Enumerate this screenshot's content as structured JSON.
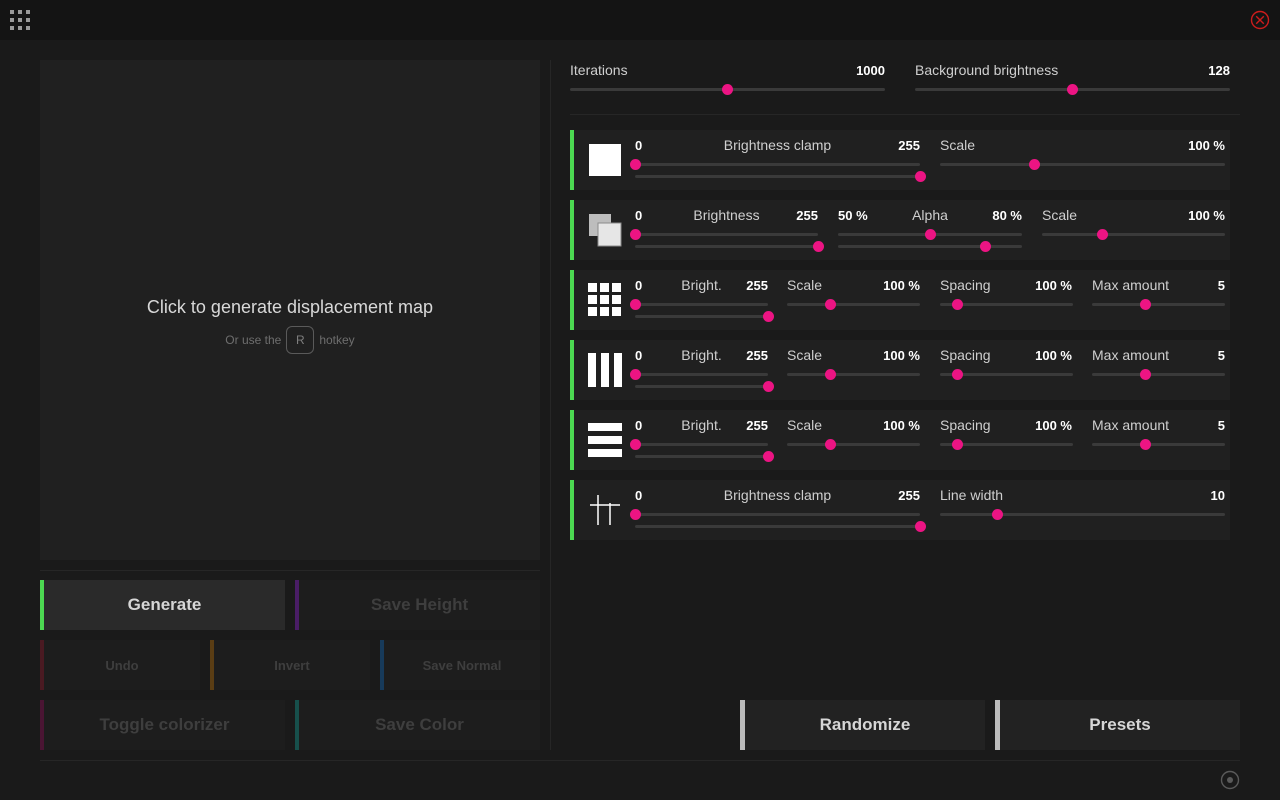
{
  "preview": {
    "title": "Click to generate displacement map",
    "hint_prefix": "Or use the",
    "hotkey": "R",
    "hint_suffix": "hotkey"
  },
  "buttons": {
    "generate": "Generate",
    "save_height": "Save Height",
    "undo": "Undo",
    "invert": "Invert",
    "save_normal": "Save Normal",
    "toggle_colorizer": "Toggle colorizer",
    "save_color": "Save Color",
    "randomize": "Randomize",
    "presets": "Presets"
  },
  "colors": {
    "accent_green": "#4cd851",
    "save_height": "#4a1d66",
    "undo": "#4a1a22",
    "invert": "#5a3d14",
    "save_normal": "#173a5a",
    "toggle_colorizer": "#4a1533",
    "save_color": "#17504c",
    "slider_knob": "#ec1483",
    "close_icon": "#cc1c1c"
  },
  "icons": {
    "menu": "grid-menu-icon",
    "close": "close-circle-icon",
    "settings": "settings-circle-icon"
  },
  "global": {
    "iterations": {
      "label": "Iterations",
      "value": "1000",
      "level": 0.5
    },
    "background_brightness": {
      "label": "Background brightness",
      "value": "128",
      "level": 0.5
    }
  },
  "layers": {
    "squares": {
      "icon": "square-icon",
      "brightness_clamp": {
        "min": "0",
        "label": "Brightness clamp",
        "max": "255",
        "low": 0.0,
        "high": 1.0
      },
      "scale": {
        "label": "Scale",
        "value": "100 %",
        "level": 0.33
      }
    },
    "overlap": {
      "icon": "overlapping-squares-icon",
      "brightness": {
        "min": "0",
        "label": "Brightness",
        "max": "255",
        "low": 0.0,
        "high": 1.0
      },
      "alpha": {
        "min": "50 %",
        "label": "Alpha",
        "max": "80 %",
        "low": 0.5,
        "high": 0.8
      },
      "scale": {
        "label": "Scale",
        "value": "100 %",
        "level": 0.33
      }
    },
    "grid": {
      "icon": "grid-blocks-icon",
      "brightness": {
        "min": "0",
        "label": "Bright.",
        "max": "255",
        "low": 0.0,
        "high": 1.0
      },
      "scale": {
        "label": "Scale",
        "value": "100 %",
        "level": 0.33
      },
      "spacing": {
        "label": "Spacing",
        "value": "100 %",
        "level": 0.13
      },
      "max_amount": {
        "label": "Max amount",
        "value": "5",
        "level": 0.4
      }
    },
    "vertical": {
      "icon": "vertical-bars-icon",
      "brightness": {
        "min": "0",
        "label": "Bright.",
        "max": "255",
        "low": 0.0,
        "high": 1.0
      },
      "scale": {
        "label": "Scale",
        "value": "100 %",
        "level": 0.33
      },
      "spacing": {
        "label": "Spacing",
        "value": "100 %",
        "level": 0.13
      },
      "max_amount": {
        "label": "Max amount",
        "value": "5",
        "level": 0.4
      }
    },
    "horizontal": {
      "icon": "horizontal-bars-icon",
      "brightness": {
        "min": "0",
        "label": "Bright.",
        "max": "255",
        "low": 0.0,
        "high": 1.0
      },
      "scale": {
        "label": "Scale",
        "value": "100 %",
        "level": 0.33
      },
      "spacing": {
        "label": "Spacing",
        "value": "100 %",
        "level": 0.13
      },
      "max_amount": {
        "label": "Max amount",
        "value": "5",
        "level": 0.4
      }
    },
    "lines": {
      "icon": "lines-icon",
      "brightness_clamp": {
        "min": "0",
        "label": "Brightness clamp",
        "max": "255",
        "low": 0.0,
        "high": 1.0
      },
      "line_width": {
        "label": "Line width",
        "value": "10",
        "level": 0.2
      }
    }
  }
}
